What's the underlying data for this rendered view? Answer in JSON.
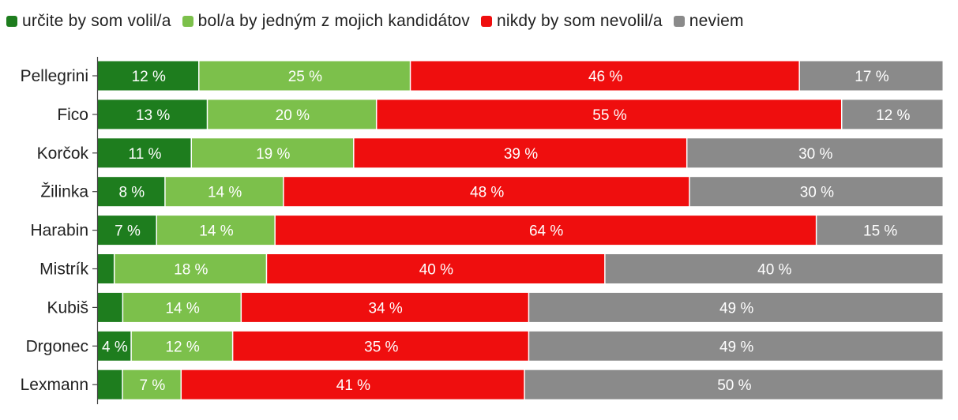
{
  "chart_data": {
    "type": "bar",
    "orientation": "horizontal",
    "stacked": true,
    "normalized_percent": true,
    "categories": [
      "Pellegrini",
      "Fico",
      "Korčok",
      "Žilinka",
      "Harabin",
      "Mistrík",
      "Kubiš",
      "Drgonec",
      "Lexmann"
    ],
    "series": [
      {
        "name": "určite by som volil/a",
        "color": "#1e7d1e",
        "values": [
          12,
          13,
          11,
          8,
          7,
          2,
          3,
          4,
          3
        ],
        "labels": [
          "12 %",
          "13 %",
          "11 %",
          "8 %",
          "7 %",
          "",
          "",
          "4 %",
          ""
        ]
      },
      {
        "name": "bol/a by jedným z mojich kandidátov",
        "color": "#7cc04b",
        "values": [
          25,
          20,
          19,
          14,
          14,
          18,
          14,
          12,
          7
        ],
        "labels": [
          "25 %",
          "20 %",
          "19 %",
          "14 %",
          "14 %",
          "18 %",
          "14 %",
          "12 %",
          "7 %"
        ]
      },
      {
        "name": "nikdy by som nevolil/a",
        "color": "#ef0e0e",
        "values": [
          46,
          55,
          39,
          48,
          64,
          40,
          34,
          35,
          41
        ],
        "labels": [
          "46 %",
          "55 %",
          "39 %",
          "48 %",
          "64 %",
          "40 %",
          "34 %",
          "35 %",
          "41 %"
        ]
      },
      {
        "name": "neviem",
        "color": "#8a8a8a",
        "values": [
          17,
          12,
          30,
          30,
          15,
          40,
          49,
          49,
          50
        ],
        "labels": [
          "17 %",
          "12 %",
          "30 %",
          "30 %",
          "15 %",
          "40 %",
          "49 %",
          "49 %",
          "50 %"
        ]
      }
    ],
    "legend_position": "top-left",
    "grid": false
  }
}
